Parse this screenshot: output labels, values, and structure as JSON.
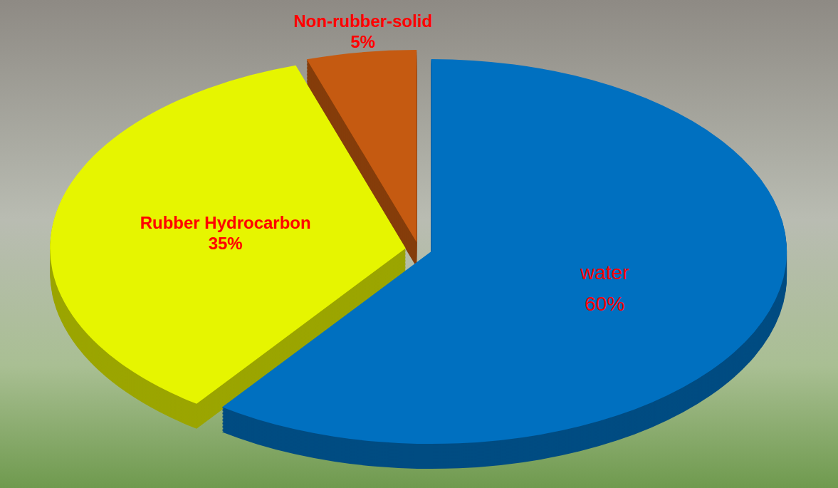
{
  "chart_data": {
    "type": "pie",
    "categories": [
      "water",
      "Rubber Hydrocarbon",
      "Non-rubber-solid"
    ],
    "values": [
      60,
      35,
      5
    ],
    "value_labels": [
      "60%",
      "35%",
      "5%"
    ],
    "colors": [
      "#0070c0",
      "#e6f500",
      "#c55a11"
    ],
    "data_labels": true
  }
}
